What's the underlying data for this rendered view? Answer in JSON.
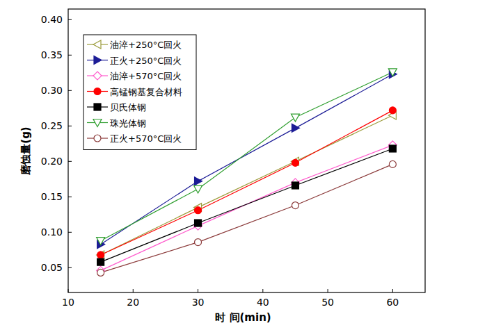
{
  "chart_data": {
    "type": "line",
    "x_label": "时 间(min)",
    "y_label": "磨蚀量(g)",
    "x": [
      15,
      30,
      45,
      60
    ],
    "xlim": [
      10,
      65
    ],
    "xticks": [
      10,
      20,
      30,
      40,
      50,
      60
    ],
    "ylim": [
      0.015,
      0.415
    ],
    "yticks": [
      0.05,
      {
        "value": 0.1,
        "label": "0.10"
      },
      0.15,
      {
        "value": 0.2,
        "label": "0.20"
      },
      0.25,
      {
        "value": 0.3,
        "label": "0.30"
      },
      0.35,
      {
        "value": 0.4,
        "label": "0.40"
      }
    ],
    "grid": false,
    "legend": "top-left",
    "series": [
      {
        "name": "油淬+250°C回火",
        "color": "#9c9c3c",
        "marker": "triangle-left-open",
        "values": [
          0.068,
          0.135,
          0.2,
          0.265
        ]
      },
      {
        "name": "正火+250°C回火",
        "color": "#1c1c96",
        "marker": "triangle-right",
        "values": [
          0.083,
          0.172,
          0.247,
          0.323
        ]
      },
      {
        "name": "油淬+570°C回火",
        "color": "#ff5ccd",
        "marker": "diamond-open",
        "values": [
          0.046,
          0.109,
          0.17,
          0.223
        ]
      },
      {
        "name": "高锰钢基复合材料",
        "color": "#ff0000",
        "marker": "circle",
        "values": [
          0.068,
          0.131,
          0.198,
          0.272
        ]
      },
      {
        "name": "贝氏体钢",
        "color": "#000000",
        "marker": "square",
        "values": [
          0.058,
          0.113,
          0.166,
          0.218
        ]
      },
      {
        "name": "珠光体钢",
        "color": "#2f9e2f",
        "marker": "triangle-down-open",
        "values": [
          0.088,
          0.161,
          0.262,
          0.326
        ]
      },
      {
        "name": "正火+570°C回火",
        "color": "#8b3a3a",
        "marker": "circle-open",
        "values": [
          0.043,
          0.086,
          0.138,
          0.196
        ]
      }
    ]
  }
}
